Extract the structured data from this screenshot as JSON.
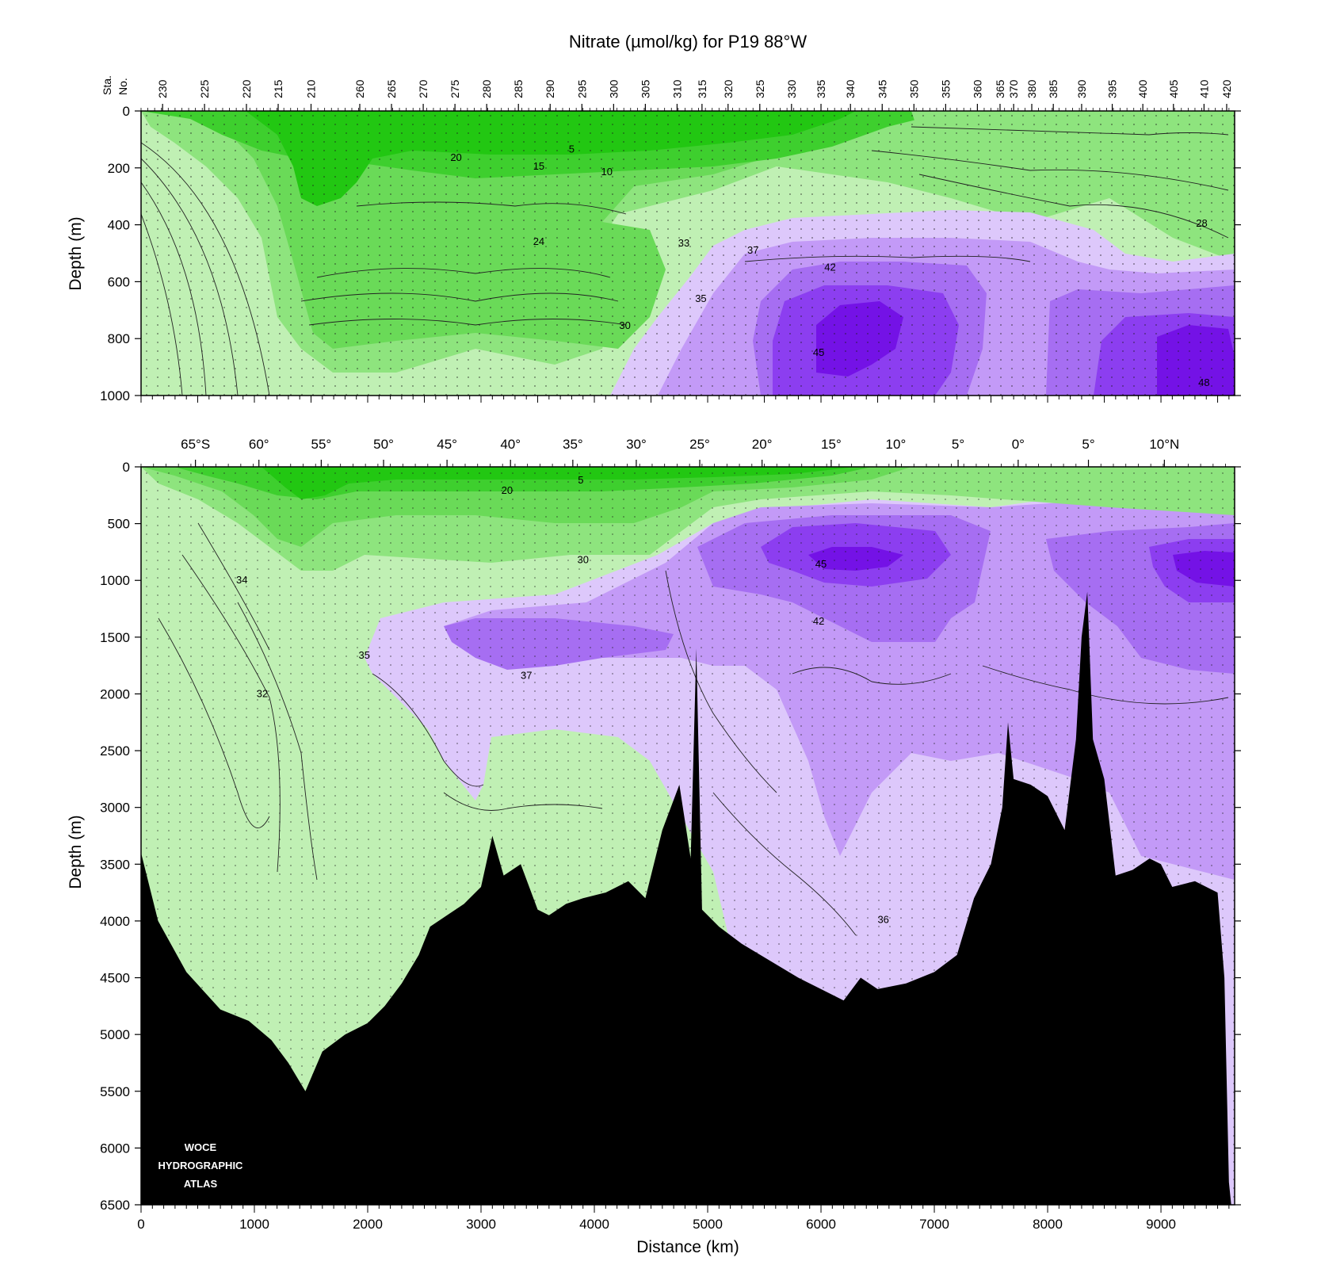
{
  "title": "Nitrate (µmol/kg) for P19 88°W",
  "colors": {
    "bg_light_green": "#c0f0b4",
    "green2": "#8ee47e",
    "green3": "#6ada58",
    "green4": "#3ecf2e",
    "green5": "#22c712",
    "lavender": "#ddc8fb",
    "purple1": "#c39af7",
    "purple2": "#a66ef2",
    "purple3": "#8c3ef0",
    "purple4": "#7412e6",
    "seafloor": "#000000"
  },
  "logo": {
    "line1": "WOCE",
    "line2": "HYDROGRAPHIC",
    "line3": "ATLAS"
  },
  "chart_data": [
    {
      "type": "heatmap",
      "panel": "upper",
      "title": "Nitrate (µmol/kg) for P19 88°W",
      "xlabel": "",
      "ylabel": "Depth (m)",
      "xlim": [
        0,
        9650
      ],
      "ylim": [
        1000,
        0
      ],
      "yticks": [
        0,
        200,
        400,
        600,
        800,
        1000
      ],
      "station_axis_label": [
        "Sta.",
        "No."
      ],
      "station_ticks": [
        {
          "label": "230",
          "x": 190
        },
        {
          "label": "225",
          "x": 560
        },
        {
          "label": "220",
          "x": 930
        },
        {
          "label": "215",
          "x": 1210
        },
        {
          "label": "210",
          "x": 1500
        },
        {
          "label": "260",
          "x": 1930
        },
        {
          "label": "265",
          "x": 2210
        },
        {
          "label": "270",
          "x": 2490
        },
        {
          "label": "275",
          "x": 2770
        },
        {
          "label": "280",
          "x": 3050
        },
        {
          "label": "285",
          "x": 3330
        },
        {
          "label": "290",
          "x": 3610
        },
        {
          "label": "295",
          "x": 3890
        },
        {
          "label": "300",
          "x": 4170
        },
        {
          "label": "305",
          "x": 4450
        },
        {
          "label": "310",
          "x": 4730
        },
        {
          "label": "315",
          "x": 4950
        },
        {
          "label": "320",
          "x": 5180
        },
        {
          "label": "325",
          "x": 5460
        },
        {
          "label": "330",
          "x": 5740
        },
        {
          "label": "335",
          "x": 6000
        },
        {
          "label": "340",
          "x": 6260
        },
        {
          "label": "345",
          "x": 6540
        },
        {
          "label": "350",
          "x": 6820
        },
        {
          "label": "355",
          "x": 7100
        },
        {
          "label": "360",
          "x": 7380
        },
        {
          "label": "365",
          "x": 7580
        },
        {
          "label": "370",
          "x": 7700
        },
        {
          "label": "380",
          "x": 7860
        },
        {
          "label": "385",
          "x": 8050
        },
        {
          "label": "390",
          "x": 8300
        },
        {
          "label": "395",
          "x": 8570
        },
        {
          "label": "400",
          "x": 8840
        },
        {
          "label": "405",
          "x": 9110
        },
        {
          "label": "410",
          "x": 9380
        },
        {
          "label": "420",
          "x": 9580
        }
      ],
      "contour_labels": [
        {
          "text": "20",
          "x": 2780,
          "y": 165
        },
        {
          "text": "15",
          "x": 3510,
          "y": 195
        },
        {
          "text": "5",
          "x": 3800,
          "y": 135
        },
        {
          "text": "10",
          "x": 4110,
          "y": 215
        },
        {
          "text": "24",
          "x": 3510,
          "y": 460
        },
        {
          "text": "33",
          "x": 4790,
          "y": 465
        },
        {
          "text": "37",
          "x": 5400,
          "y": 490
        },
        {
          "text": "42",
          "x": 6080,
          "y": 550
        },
        {
          "text": "35",
          "x": 4940,
          "y": 660
        },
        {
          "text": "30",
          "x": 4270,
          "y": 755
        },
        {
          "text": "45",
          "x": 5980,
          "y": 850
        },
        {
          "text": "28",
          "x": 9360,
          "y": 395
        },
        {
          "text": "48",
          "x": 9380,
          "y": 955
        }
      ]
    },
    {
      "type": "heatmap",
      "panel": "lower",
      "xlabel": "Distance (km)",
      "ylabel": "Depth (m)",
      "xlim": [
        0,
        9650
      ],
      "ylim": [
        6500,
        0
      ],
      "xticks": [
        0,
        1000,
        2000,
        3000,
        4000,
        5000,
        6000,
        7000,
        8000,
        9000
      ],
      "yticks": [
        0,
        500,
        1000,
        1500,
        2000,
        2500,
        3000,
        3500,
        4000,
        4500,
        5000,
        5500,
        6000,
        6500
      ],
      "latitude_ticks": [
        {
          "label": "65°S",
          "x": 480
        },
        {
          "label": "60°",
          "x": 1040
        },
        {
          "label": "55°",
          "x": 1590
        },
        {
          "label": "50°",
          "x": 2140
        },
        {
          "label": "45°",
          "x": 2700
        },
        {
          "label": "40°",
          "x": 3260
        },
        {
          "label": "35°",
          "x": 3810
        },
        {
          "label": "30°",
          "x": 4370
        },
        {
          "label": "25°",
          "x": 4930
        },
        {
          "label": "20°",
          "x": 5480
        },
        {
          "label": "15°",
          "x": 6090
        },
        {
          "label": "10°",
          "x": 6660
        },
        {
          "label": "5°",
          "x": 7210
        },
        {
          "label": "0°",
          "x": 7740
        },
        {
          "label": "5°",
          "x": 8360
        },
        {
          "label": "10°N",
          "x": 9030
        }
      ],
      "contour_labels": [
        {
          "text": "20",
          "x": 3230,
          "y": 210
        },
        {
          "text": "5",
          "x": 3880,
          "y": 120
        },
        {
          "text": "30",
          "x": 3900,
          "y": 820
        },
        {
          "text": "45",
          "x": 6000,
          "y": 860
        },
        {
          "text": "34",
          "x": 890,
          "y": 1000
        },
        {
          "text": "42",
          "x": 5980,
          "y": 1360
        },
        {
          "text": "35",
          "x": 1970,
          "y": 1660
        },
        {
          "text": "37",
          "x": 3400,
          "y": 1840
        },
        {
          "text": "32",
          "x": 1070,
          "y": 2000
        },
        {
          "text": "36",
          "x": 6550,
          "y": 3990
        }
      ],
      "bathymetry_max_depth_m": [
        [
          0,
          3400
        ],
        [
          150,
          4000
        ],
        [
          400,
          4450
        ],
        [
          700,
          4780
        ],
        [
          950,
          4880
        ],
        [
          1150,
          5050
        ],
        [
          1300,
          5250
        ],
        [
          1450,
          5500
        ],
        [
          1600,
          5150
        ],
        [
          1800,
          5000
        ],
        [
          2000,
          4900
        ],
        [
          2150,
          4750
        ],
        [
          2300,
          4550
        ],
        [
          2450,
          4300
        ],
        [
          2550,
          4050
        ],
        [
          2700,
          3950
        ],
        [
          2850,
          3850
        ],
        [
          3000,
          3700
        ],
        [
          3100,
          3250
        ],
        [
          3200,
          3600
        ],
        [
          3350,
          3500
        ],
        [
          3500,
          3900
        ],
        [
          3600,
          3950
        ],
        [
          3750,
          3850
        ],
        [
          3900,
          3800
        ],
        [
          4100,
          3750
        ],
        [
          4300,
          3650
        ],
        [
          4450,
          3800
        ],
        [
          4600,
          3200
        ],
        [
          4750,
          2800
        ],
        [
          4850,
          3450
        ],
        [
          4900,
          1600
        ],
        [
          4950,
          3900
        ],
        [
          5100,
          4050
        ],
        [
          5300,
          4200
        ],
        [
          5550,
          4350
        ],
        [
          5800,
          4500
        ],
        [
          6000,
          4600
        ],
        [
          6200,
          4700
        ],
        [
          6350,
          4500
        ],
        [
          6500,
          4600
        ],
        [
          6750,
          4550
        ],
        [
          7000,
          4450
        ],
        [
          7200,
          4300
        ],
        [
          7350,
          3800
        ],
        [
          7500,
          3500
        ],
        [
          7600,
          3000
        ],
        [
          7650,
          2250
        ],
        [
          7700,
          2750
        ],
        [
          7850,
          2800
        ],
        [
          8000,
          2900
        ],
        [
          8150,
          3200
        ],
        [
          8250,
          2400
        ],
        [
          8300,
          1500
        ],
        [
          8350,
          1100
        ],
        [
          8400,
          2400
        ],
        [
          8500,
          2750
        ],
        [
          8600,
          3600
        ],
        [
          8750,
          3550
        ],
        [
          8900,
          3450
        ],
        [
          9000,
          3500
        ],
        [
          9100,
          3700
        ],
        [
          9300,
          3650
        ],
        [
          9500,
          3750
        ],
        [
          9560,
          4500
        ],
        [
          9600,
          6300
        ],
        [
          9620,
          6500
        ]
      ]
    }
  ]
}
